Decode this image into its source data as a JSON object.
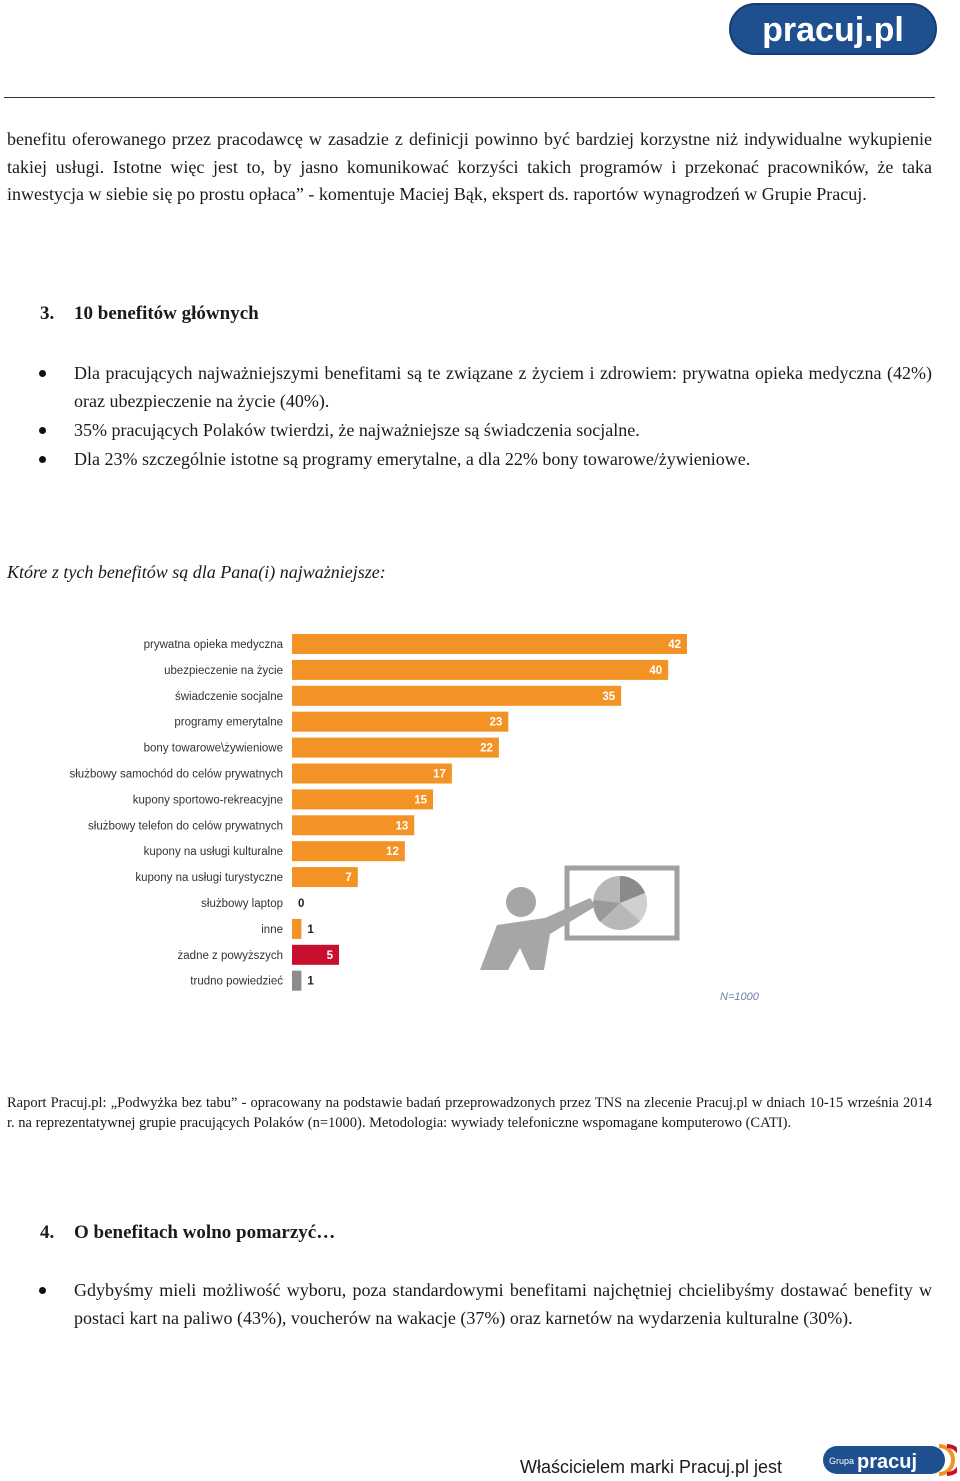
{
  "header": {
    "logo_text": "pracuj.pl",
    "brand_color": "#1e4f8f"
  },
  "intro_paragraph": "benefitu oferowanego przez pracodawcę w zasadzie z definicji powinno być bardziej korzystne niż indywidualne wykupienie takiej usługi. Istotne więc jest to, by jasno komunikować korzyści takich programów i przekonać pracowników, że taka inwestycja w siebie się po prostu opłaca” - komentuje Maciej Bąk, ekspert ds. raportów wynagrodzeń w Grupie Pracuj.",
  "section3": {
    "number": "3.",
    "title": "10 benefitów głównych",
    "bullets": [
      "Dla pracujących najważniejszymi benefitami są te związane z życiem i zdrowiem: prywatna opieka medyczna (42%) oraz ubezpieczenie na życie (40%).",
      "35% pracujących Polaków twierdzi, że najważniejsze są świadczenia socjalne.",
      "Dla 23% szczególnie istotne są programy emerytalne, a dla 22% bony towarowe/żywieniowe."
    ]
  },
  "chart_question": "Które z tych benefitów są dla Pana(i) najważniejsze:",
  "chart_data": {
    "type": "bar",
    "orientation": "horizontal",
    "title": "",
    "xlabel": "",
    "ylabel": "",
    "xlim": [
      0,
      42
    ],
    "note": "N=1000",
    "categories": [
      "prywatna opieka medyczna",
      "ubezpieczenie na życie",
      "świadczenie socjalne",
      "programy emerytalne",
      "bony towarowe\\żywieniowe",
      "służbowy samochód do celów prywatnych",
      "kupony sportowo-rekreacyjne",
      "służbowy telefon do celów prywatnych",
      "kupony na usługi kulturalne",
      "kupony na usługi turystyczne",
      "służbowy laptop",
      "inne",
      "żadne z powyższych",
      "trudno powiedzieć"
    ],
    "values": [
      42,
      40,
      35,
      23,
      22,
      17,
      15,
      13,
      12,
      7,
      0,
      1,
      5,
      1
    ],
    "bar_colors": [
      "#f39325",
      "#f39325",
      "#f39325",
      "#f39325",
      "#f39325",
      "#f39325",
      "#f39325",
      "#f39325",
      "#f39325",
      "#f39325",
      "#f39325",
      "#f39325",
      "#c8102e",
      "#8c8c8c"
    ],
    "value_label_color": "#ffffff",
    "illustration": "presenter-with-chart-board"
  },
  "source_note": "Raport Pracuj.pl: „Podwyżka bez tabu” - opracowany na podstawie badań przeprowadzonych przez TNS na zlecenie Pracuj.pl w dniach 10-15 września 2014 r. na reprezentatywnej grupie pracujących Polaków (n=1000). Metodologia: wywiady telefoniczne wspomagane komputerowo (CATI).",
  "section4": {
    "number": "4.",
    "title": "O benefitach wolno pomarzyć…",
    "bullets": [
      "Gdybyśmy mieli możliwość wyboru, poza standardowymi benefitami najchętniej chcielibyśmy dostawać benefity w postaci kart na paliwo (43%), voucherów na wakacje (37%) oraz karnetów na wydarzenia kulturalne (30%)."
    ]
  },
  "footer": {
    "text": "Właścicielem marki Pracuj.pl jest",
    "logo_small": "Grupa",
    "logo_main": "pracuj"
  }
}
